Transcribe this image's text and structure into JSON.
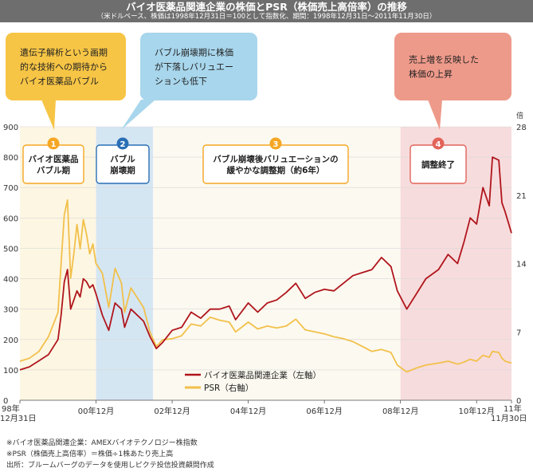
{
  "header": {
    "title": "バイオ医薬品関連企業の株価とPSR（株価売上高倍率）の推移",
    "subtitle": "（米ドルベース、株価は1998年12月31日＝100として指数化、期間：1998年12月31日〜2011年11月30日）"
  },
  "callouts": [
    {
      "text": [
        "遺伝子解析という画期",
        "的な技術への期待から",
        "バイオ医薬品バブル"
      ],
      "color": "#f7c545"
    },
    {
      "text": [
        "バブル崩壊期に株価",
        "が下落しバリュエー",
        "ションも低下"
      ],
      "color": "#a8d6ec"
    },
    {
      "text": [
        "売上増を反映した",
        "株価の上昇"
      ],
      "color": "#ee9a8a"
    }
  ],
  "phases": [
    {
      "number": "1",
      "label": [
        "バイオ医薬品",
        "バブル期"
      ],
      "color": "#f5a623"
    },
    {
      "number": "2",
      "label": [
        "バブル",
        "崩壊期"
      ],
      "color": "#2a6fb5"
    },
    {
      "number": "3",
      "label": [
        "バブル崩壊後バリュエーションの",
        "緩やかな調整期（約6年）"
      ],
      "color": "#f5a623"
    },
    {
      "number": "4",
      "label": [
        "調整終了"
      ],
      "color": "#e2645a"
    }
  ],
  "colors": {
    "stock": "#b0151c",
    "psr": "#f2c04a",
    "bubble_band": "#fdf6e2",
    "crash_band": "#d5e6f3",
    "post_band": "#fcf9f0",
    "recovery_band": "#f7dcdd"
  },
  "chart_data": {
    "type": "line",
    "x_ticks": [
      "98年12月31日",
      "00年12月",
      "02年12月",
      "04年12月",
      "06年12月",
      "08年12月",
      "10年12月",
      "11年11月30日"
    ],
    "y_left": {
      "ticks": [
        0,
        100,
        200,
        300,
        400,
        500,
        600,
        700,
        800,
        900
      ],
      "range": [
        0,
        900
      ]
    },
    "y_right": {
      "unit": "倍",
      "ticks": [
        0,
        7,
        14,
        21,
        28
      ],
      "range": [
        0,
        28
      ]
    },
    "shaded_periods": [
      {
        "phase": "2",
        "from": "2000-12",
        "to": "2002-06"
      },
      {
        "phase": "4",
        "from": "2008-12",
        "to": "2011-11"
      }
    ],
    "series": [
      {
        "name": "バイオ医薬品関連企業（左軸）",
        "axis": "left",
        "points": [
          [
            "1998-12",
            100
          ],
          [
            "1999-03",
            110
          ],
          [
            "1999-06",
            130
          ],
          [
            "1999-09",
            150
          ],
          [
            "1999-12",
            200
          ],
          [
            "2000-01",
            280
          ],
          [
            "2000-02",
            390
          ],
          [
            "2000-03",
            430
          ],
          [
            "2000-04",
            300
          ],
          [
            "2000-05",
            330
          ],
          [
            "2000-06",
            360
          ],
          [
            "2000-07",
            340
          ],
          [
            "2000-08",
            400
          ],
          [
            "2000-09",
            390
          ],
          [
            "2000-10",
            370
          ],
          [
            "2000-11",
            380
          ],
          [
            "2000-12",
            350
          ],
          [
            "2001-02",
            280
          ],
          [
            "2001-04",
            230
          ],
          [
            "2001-06",
            320
          ],
          [
            "2001-08",
            300
          ],
          [
            "2001-09",
            240
          ],
          [
            "2001-11",
            300
          ],
          [
            "2002-01",
            280
          ],
          [
            "2002-03",
            260
          ],
          [
            "2002-05",
            210
          ],
          [
            "2002-07",
            170
          ],
          [
            "2002-09",
            190
          ],
          [
            "2002-12",
            230
          ],
          [
            "2003-03",
            240
          ],
          [
            "2003-06",
            290
          ],
          [
            "2003-09",
            270
          ],
          [
            "2003-12",
            300
          ],
          [
            "2004-03",
            300
          ],
          [
            "2004-06",
            310
          ],
          [
            "2004-08",
            265
          ],
          [
            "2004-12",
            320
          ],
          [
            "2005-03",
            290
          ],
          [
            "2005-06",
            320
          ],
          [
            "2005-09",
            330
          ],
          [
            "2005-12",
            355
          ],
          [
            "2006-03",
            385
          ],
          [
            "2006-06",
            335
          ],
          [
            "2006-09",
            355
          ],
          [
            "2006-12",
            365
          ],
          [
            "2007-03",
            360
          ],
          [
            "2007-06",
            385
          ],
          [
            "2007-09",
            410
          ],
          [
            "2007-12",
            420
          ],
          [
            "2008-03",
            430
          ],
          [
            "2008-06",
            470
          ],
          [
            "2008-09",
            440
          ],
          [
            "2008-11",
            360
          ],
          [
            "2009-02",
            300
          ],
          [
            "2009-05",
            350
          ],
          [
            "2009-08",
            400
          ],
          [
            "2009-12",
            430
          ],
          [
            "2010-03",
            480
          ],
          [
            "2010-06",
            450
          ],
          [
            "2010-08",
            520
          ],
          [
            "2010-10",
            600
          ],
          [
            "2010-12",
            580
          ],
          [
            "2011-02",
            700
          ],
          [
            "2011-04",
            640
          ],
          [
            "2011-05",
            800
          ],
          [
            "2011-07",
            790
          ],
          [
            "2011-08",
            650
          ],
          [
            "2011-09",
            620
          ],
          [
            "2011-11",
            550
          ]
        ]
      },
      {
        "name": "PSR（右軸）",
        "axis": "right",
        "points": [
          [
            "1998-12",
            4.0
          ],
          [
            "1999-03",
            4.3
          ],
          [
            "1999-06",
            5.0
          ],
          [
            "1999-09",
            6.5
          ],
          [
            "1999-12",
            9.0
          ],
          [
            "2000-01",
            14.0
          ],
          [
            "2000-02",
            19.0
          ],
          [
            "2000-03",
            20.5
          ],
          [
            "2000-04",
            12.5
          ],
          [
            "2000-05",
            15.0
          ],
          [
            "2000-06",
            18.0
          ],
          [
            "2000-07",
            15.5
          ],
          [
            "2000-08",
            18.5
          ],
          [
            "2000-09",
            17.0
          ],
          [
            "2000-10",
            15.0
          ],
          [
            "2000-11",
            16.0
          ],
          [
            "2000-12",
            14.0
          ],
          [
            "2001-02",
            13.0
          ],
          [
            "2001-04",
            9.5
          ],
          [
            "2001-06",
            13.5
          ],
          [
            "2001-08",
            12.0
          ],
          [
            "2001-09",
            9.0
          ],
          [
            "2001-11",
            11.5
          ],
          [
            "2002-01",
            10.5
          ],
          [
            "2002-03",
            9.5
          ],
          [
            "2002-05",
            7.0
          ],
          [
            "2002-07",
            5.5
          ],
          [
            "2002-09",
            6.2
          ],
          [
            "2002-12",
            6.3
          ],
          [
            "2003-03",
            6.6
          ],
          [
            "2003-06",
            7.8
          ],
          [
            "2003-09",
            7.6
          ],
          [
            "2003-12",
            8.5
          ],
          [
            "2004-03",
            8.2
          ],
          [
            "2004-06",
            8.0
          ],
          [
            "2004-08",
            7.0
          ],
          [
            "2004-12",
            8.0
          ],
          [
            "2005-03",
            7.3
          ],
          [
            "2005-06",
            7.6
          ],
          [
            "2005-09",
            7.4
          ],
          [
            "2005-12",
            7.6
          ],
          [
            "2006-03",
            8.3
          ],
          [
            "2006-06",
            7.2
          ],
          [
            "2006-09",
            7.0
          ],
          [
            "2006-12",
            6.8
          ],
          [
            "2007-03",
            6.5
          ],
          [
            "2007-06",
            6.3
          ],
          [
            "2007-09",
            6.0
          ],
          [
            "2007-12",
            5.5
          ],
          [
            "2008-03",
            5.0
          ],
          [
            "2008-06",
            5.2
          ],
          [
            "2008-09",
            4.9
          ],
          [
            "2008-11",
            3.6
          ],
          [
            "2009-02",
            2.9
          ],
          [
            "2009-05",
            3.3
          ],
          [
            "2009-08",
            3.6
          ],
          [
            "2009-12",
            3.8
          ],
          [
            "2010-03",
            4.0
          ],
          [
            "2010-06",
            3.7
          ],
          [
            "2010-08",
            3.9
          ],
          [
            "2010-10",
            4.2
          ],
          [
            "2010-12",
            4.0
          ],
          [
            "2011-02",
            4.6
          ],
          [
            "2011-04",
            4.4
          ],
          [
            "2011-05",
            5.0
          ],
          [
            "2011-07",
            4.9
          ],
          [
            "2011-08",
            4.3
          ],
          [
            "2011-09",
            4.0
          ],
          [
            "2011-11",
            3.8
          ]
        ]
      }
    ]
  },
  "footnotes": [
    "※バイオ医薬品関連企業：AMEXバイオテクノロジー株指数",
    "※PSR（株価売上高倍率）＝株価÷1株あたり売上高",
    "出所：ブルームバーグのデータを使用しピクテ投信投資顧問作成"
  ]
}
